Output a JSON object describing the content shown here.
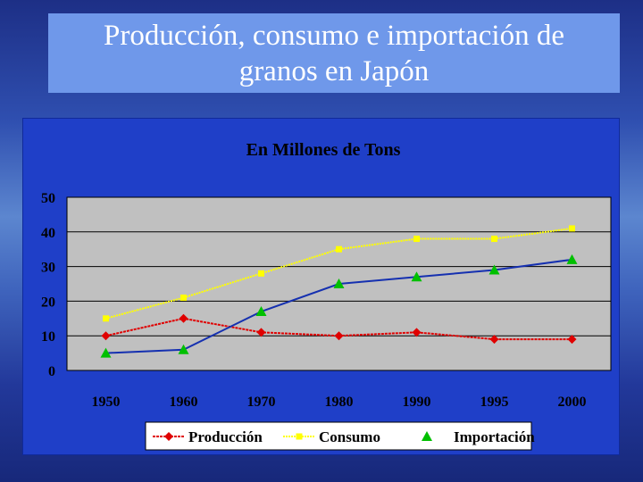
{
  "slide": {
    "title_line1": "Producción, consumo e importación de",
    "title_line2": "granos en Japón"
  },
  "colors": {
    "background": "#2f4fb0",
    "title_box": "#6f98ea",
    "chart_panel": "#1f3fc8",
    "plot_area": "#c0c0c0",
    "produccion": "#e00000",
    "consumo": "#ffff00",
    "importacion": "#1530b0",
    "importacion_marker": "#00c000"
  },
  "chart_data": {
    "type": "line",
    "title": "En Millones de Tons",
    "categories": [
      "1950",
      "1960",
      "1970",
      "1980",
      "1990",
      "1995",
      "2000"
    ],
    "ylim": [
      0,
      50
    ],
    "yticks": [
      "0",
      "10",
      "20",
      "30",
      "40",
      "50"
    ],
    "grid": true,
    "legend_position": "bottom",
    "series": [
      {
        "name": "Producción",
        "values": [
          10,
          15,
          11,
          10,
          11,
          9,
          9
        ],
        "marker": "diamond"
      },
      {
        "name": "Consumo",
        "values": [
          15,
          21,
          28,
          35,
          38,
          38,
          41
        ],
        "marker": "square"
      },
      {
        "name": "Importación",
        "values": [
          5,
          6,
          17,
          25,
          27,
          29,
          32
        ],
        "marker": "triangle"
      }
    ]
  }
}
